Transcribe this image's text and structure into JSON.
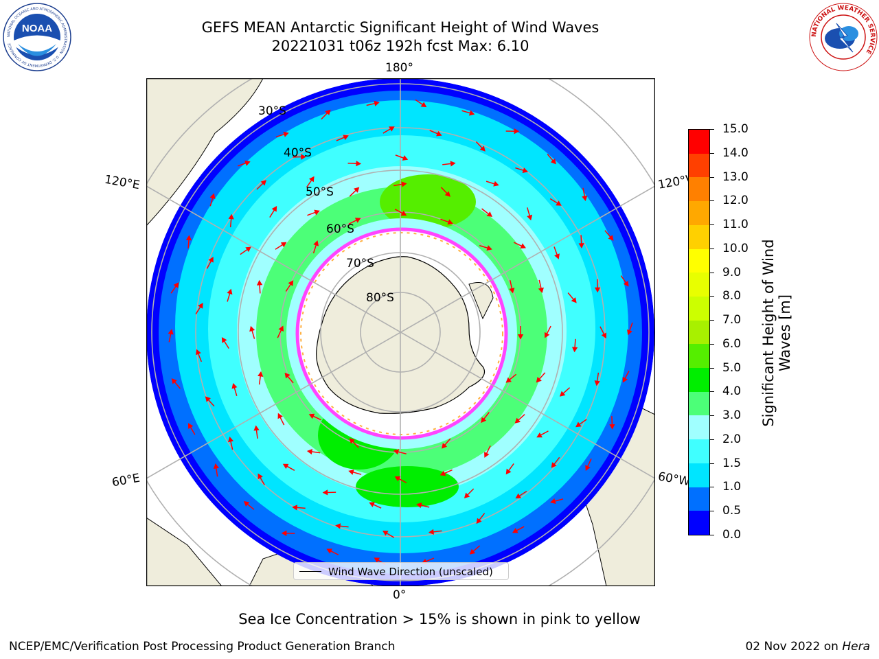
{
  "header": {
    "title_line1": "GEFS MEAN Antarctic Significant Height of Wind Waves",
    "title_line2": "20221031 t06z 192h fcst   Max: 6.10"
  },
  "logos": {
    "noaa_text": "NOAA",
    "noaa_ring_text": "NATIONAL OCEANIC AND ATMOSPHERIC ADMINISTRATION · U.S. DEPARTMENT OF COMMERCE",
    "nws_ring_text": "NATIONAL WEATHER SERVICE"
  },
  "map": {
    "longitude_labels": {
      "top": "180°",
      "bottom": "0°",
      "left_upper": "120°E",
      "left_lower": "60°E",
      "right_upper": "120°W",
      "right_lower": "60°W"
    },
    "latitude_labels": [
      "30°S",
      "40°S",
      "50°S",
      "60°S",
      "70°S",
      "80°S"
    ],
    "legend_label": "Wind Wave Direction (unscaled)",
    "colors": {
      "land": "#efeddc",
      "ice_edge": "#ff44ff",
      "arrow": "#ff0000",
      "grid": "#b0b0b0"
    }
  },
  "colorbar": {
    "label_line1": "Significant Height of Wind",
    "label_line2": "Waves [m]",
    "ticks": [
      "0.0",
      "0.5",
      "1.0",
      "1.5",
      "2.0",
      "3.0",
      "4.0",
      "5.0",
      "6.0",
      "7.0",
      "8.0",
      "9.0",
      "10.0",
      "11.0",
      "12.0",
      "13.0",
      "14.0",
      "15.0"
    ],
    "colors": [
      "#0000ff",
      "#0070ff",
      "#00e5ff",
      "#40ffff",
      "#a0ffff",
      "#4cff78",
      "#00ee00",
      "#55ee00",
      "#a8f000",
      "#ccff00",
      "#e8ff00",
      "#ffff00",
      "#ffd000",
      "#ffa800",
      "#ff8000",
      "#ff4000",
      "#ff0000"
    ]
  },
  "notes": {
    "sea_ice": "Sea Ice Concentration > 15% is shown in pink to yellow",
    "credit": "NCEP/EMC/Verification Post Processing Product Generation Branch",
    "date": "02 Nov 2022 on ",
    "machine": "Hera"
  }
}
